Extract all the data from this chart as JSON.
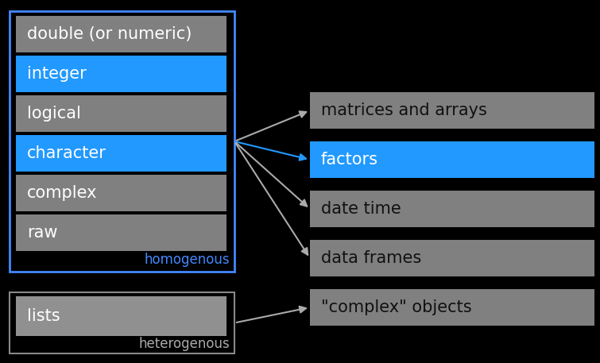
{
  "background_color": "#000000",
  "left_border_color": "#4488ff",
  "left_items": [
    {
      "label": "double (or numeric)",
      "blue": false
    },
    {
      "label": "integer",
      "blue": true
    },
    {
      "label": "logical",
      "blue": false
    },
    {
      "label": "character",
      "blue": true
    },
    {
      "label": "complex",
      "blue": false
    },
    {
      "label": "raw",
      "blue": false
    }
  ],
  "left_label": "homogenous",
  "left_label_color": "#4488ff",
  "lists_label": "lists",
  "lists_sublabel": "heterogenous",
  "right_items": [
    {
      "label": "matrices and arrays",
      "blue": false
    },
    {
      "label": "factors",
      "blue": true
    },
    {
      "label": "date time",
      "blue": false
    },
    {
      "label": "data frames",
      "blue": false
    },
    {
      "label": "\"complex\" objects",
      "blue": false
    }
  ],
  "gray_bg": "#808080",
  "gray_bg2": "#909090",
  "blue_bg": "#2299ff",
  "arrow_color_gray": "#aaaaaa",
  "arrow_color_blue": "#2299ff",
  "text_white": "#ffffff",
  "text_dark": "#111111"
}
